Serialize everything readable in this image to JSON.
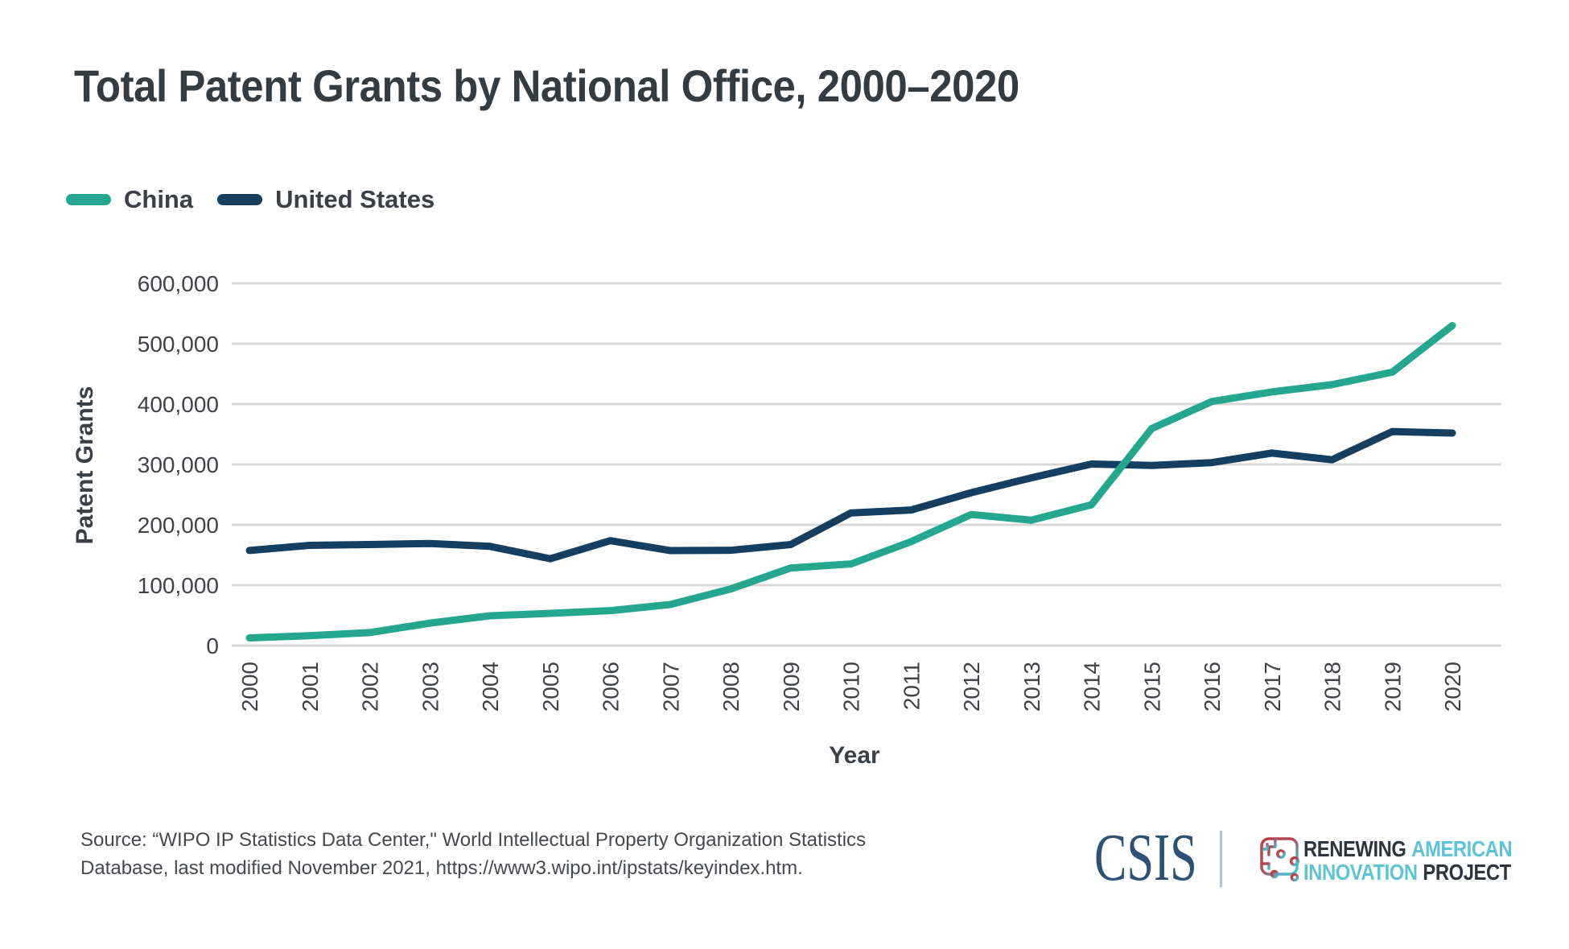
{
  "page": {
    "background": "#ffffff"
  },
  "chart_data": {
    "type": "line",
    "title": "Total Patent Grants by National Office, 2000–2020",
    "xlabel": "Year",
    "ylabel": "Patent Grants",
    "x": [
      2000,
      2001,
      2002,
      2003,
      2004,
      2005,
      2006,
      2007,
      2008,
      2009,
      2010,
      2011,
      2012,
      2013,
      2014,
      2015,
      2016,
      2017,
      2018,
      2019,
      2020
    ],
    "series": [
      {
        "name": "China",
        "color": "#24a78e",
        "values": [
          12683,
          16296,
          21473,
          37154,
          49360,
          53305,
          57786,
          67948,
          93706,
          128489,
          135110,
          172113,
          217105,
          207688,
          233228,
          359316,
          404208,
          420144,
          432147,
          452804,
          530127
        ]
      },
      {
        "name": "United States",
        "color": "#143f60",
        "values": [
          157496,
          166038,
          167333,
          169023,
          164290,
          143806,
          173772,
          157282,
          157772,
          167349,
          219614,
          224505,
          253155,
          277835,
          300678,
          298407,
          303049,
          318829,
          307759,
          354430,
          351993
        ]
      }
    ],
    "ylim": [
      0,
      600000
    ],
    "y_ticks": [
      0,
      100000,
      200000,
      300000,
      400000,
      500000,
      600000
    ],
    "y_tick_labels": [
      "0",
      "100,000",
      "200,000",
      "300,000",
      "400,000",
      "500,000",
      "600,000"
    ],
    "grid": "horizontal",
    "gridline_color": "#d8d8d8",
    "legend_position": "top-left"
  },
  "footer": {
    "source_line1": "Source: “WIPO IP Statistics Data Center,\" World Intellectual Property Organization Statistics",
    "source_line2": "Database, last modified November 2021, https://www3.wipo.int/ipstats/keyindex.htm.",
    "csis_wordmark": "CSIS",
    "csis_color": "#2c5377",
    "raip": {
      "line1_word1": "RENEWING",
      "line1_word2": "AMERICAN",
      "line2_word1": "INNOVATION",
      "line2_word2": "PROJECT",
      "dark_color": "#2e353c",
      "blue_color": "#5ec3d5"
    }
  }
}
